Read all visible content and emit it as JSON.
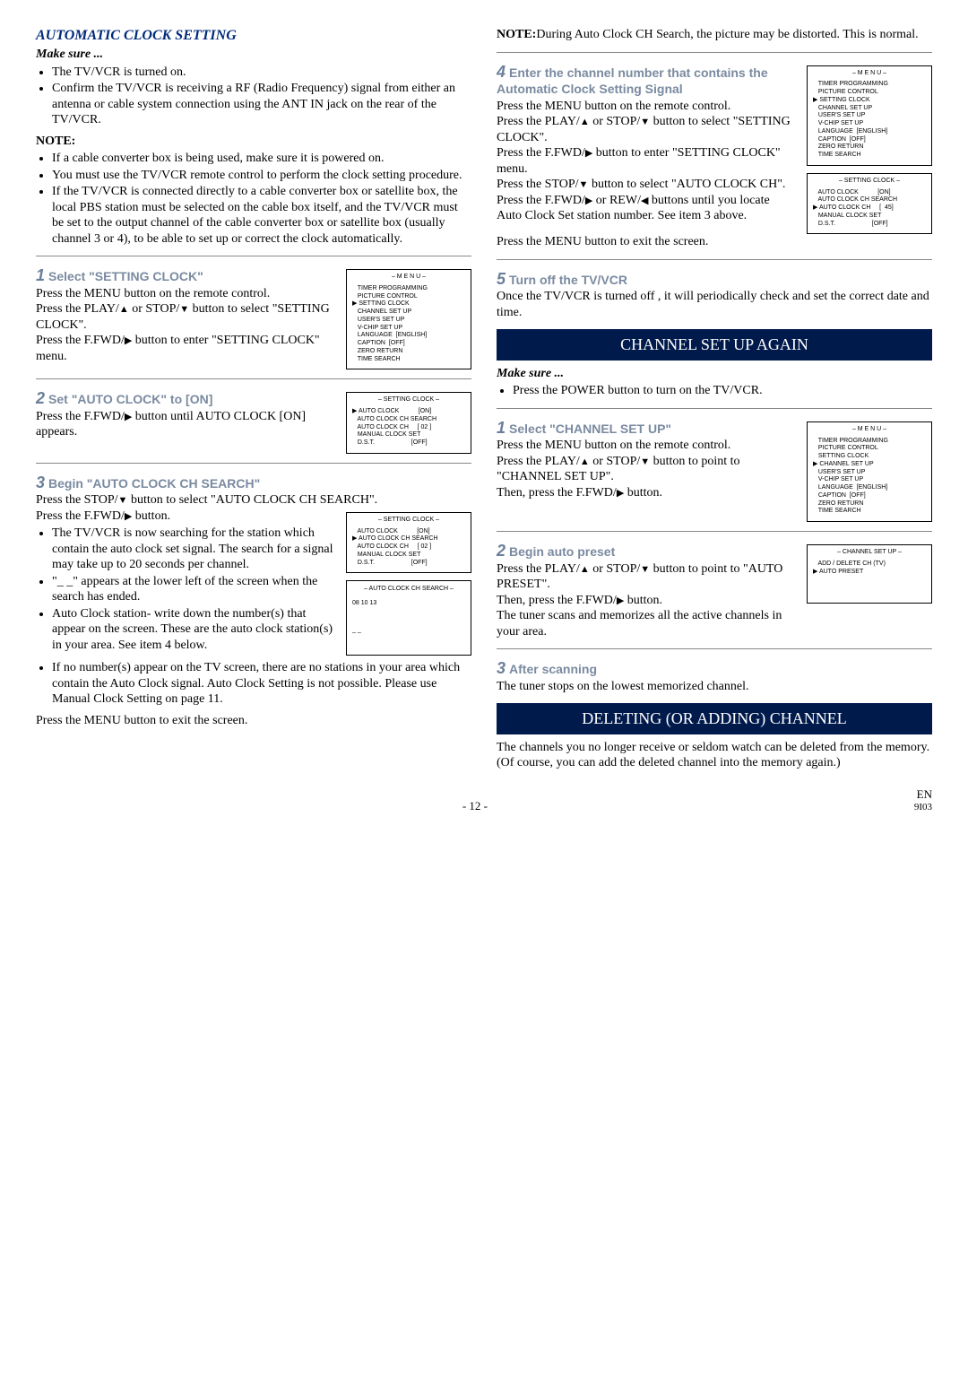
{
  "left": {
    "title": "AUTOMATIC CLOCK SETTING",
    "makeSure": "Make sure ...",
    "pre_bullets": [
      "The TV/VCR is turned on.",
      "Confirm the TV/VCR is receiving a RF (Radio Frequency) signal from either an antenna or cable system connection using the ANT IN jack on the rear of the TV/VCR."
    ],
    "noteLabel": "NOTE:",
    "note_bullets": [
      "If a cable converter box is being used, make sure it is powered on.",
      "You must use the TV/VCR remote control to perform the clock setting procedure.",
      "If the TV/VCR is connected directly to a cable converter box or satellite box, the local PBS station must be selected on the cable box itself, and the TV/VCR must be set to the output channel of the cable converter box or satellite box (usually channel 3 or 4), to be able to set up or correct the clock automatically."
    ],
    "s1": {
      "num": "1",
      "head": "Select \"SETTING CLOCK\"",
      "p1": "Press the MENU button on the remote control.",
      "p2a": "Press the PLAY/",
      "p2b": " or STOP/",
      "p2c": " button to select \"SETTING CLOCK\".",
      "p3a": "Press the F.FWD/",
      "p3b": " button to enter \"SETTING CLOCK\" menu.",
      "menu": {
        "title": "– M E N U –",
        "lines": [
          "TIMER PROGRAMMING",
          "PICTURE CONTROL",
          "SETTING CLOCK",
          "CHANNEL SET UP",
          "USER'S SET UP",
          "V-CHIP SET UP",
          "LANGUAGE  [ENGLISH]",
          "CAPTION  [OFF]",
          "ZERO RETURN",
          "TIME SEARCH"
        ],
        "selIndex": 2
      }
    },
    "s2": {
      "num": "2",
      "head": "Set \"AUTO CLOCK\" to [ON]",
      "p1a": "Press the F.FWD/",
      "p1b": " button until AUTO CLOCK [ON] appears.",
      "menu": {
        "title": "– SETTING CLOCK –",
        "lines": [
          "AUTO CLOCK           [ON]",
          "AUTO CLOCK CH SEARCH",
          "AUTO CLOCK CH     [ 02 ]",
          "MANUAL CLOCK SET",
          "D.S.T.                     [OFF]"
        ],
        "selIndex": 0
      }
    },
    "s3": {
      "num": "3",
      "head": "Begin \"AUTO CLOCK CH SEARCH\"",
      "p1a": "Press the STOP/",
      "p1b": " button to select \"AUTO CLOCK CH SEARCH\".",
      "p2a": "Press the F.FWD/",
      "p2b": " button.",
      "b1": "The TV/VCR is now searching for the station which contain the auto clock set signal. The search for a signal may take up to 20 seconds per channel.",
      "b2": "\"_ _\" appears at the lower left of the screen when the search has ended.",
      "b3": "Auto Clock station- write down the number(s) that appear on the screen. These are the auto clock station(s) in your area. See item 4 below.",
      "b4": "If no number(s) appear on the TV screen, there are no stations in your area which contain the Auto Clock signal. Auto Clock Setting is not possible. Please use Manual Clock Setting on page 11.",
      "p3": "Press the MENU button to exit the screen.",
      "menu": {
        "title": "– SETTING CLOCK –",
        "lines": [
          "AUTO CLOCK           [ON]",
          "AUTO CLOCK CH SEARCH",
          "AUTO CLOCK CH     [ 02 ]",
          "MANUAL CLOCK SET",
          "D.S.T.                     [OFF]"
        ],
        "selIndex": 1
      },
      "search": {
        "title": "– AUTO CLOCK CH SEARCH –",
        "row": "08     10     13",
        "tail": "_ _"
      }
    }
  },
  "right": {
    "topNoteLabel": "NOTE:",
    "topNote": "During Auto Clock CH Search, the picture may be distorted. This is normal.",
    "s4": {
      "num": "4",
      "head": "Enter the channel number that contains the Automatic Clock Setting Signal",
      "p1": "Press the MENU button on the remote control.",
      "p2a": "Press the PLAY/",
      "p2b": " or STOP/",
      "p2c": " button to select \"SETTING CLOCK\".",
      "p3a": "Press the F.FWD/",
      "p3b": " button to enter \"SETTING CLOCK\" menu.",
      "p4a": "Press the STOP/",
      "p4b": " button to select \"AUTO CLOCK CH\".",
      "p5a": "Press the F.FWD/",
      "p5b": " or REW/",
      "p5c": " buttons until you locate Auto Clock Set station number. See item 3 above.",
      "p6": "Press the MENU button to exit the screen.",
      "menu1": {
        "title": "– M E N U –",
        "lines": [
          "TIMER PROGRAMMING",
          "PICTURE CONTROL",
          "SETTING CLOCK",
          "CHANNEL SET UP",
          "USER'S SET UP",
          "V-CHIP SET UP",
          "LANGUAGE  [ENGLISH]",
          "CAPTION  [OFF]",
          "ZERO RETURN",
          "TIME SEARCH"
        ],
        "selIndex": 2
      },
      "menu2": {
        "title": "– SETTING CLOCK –",
        "lines": [
          "AUTO CLOCK           [ON]",
          "AUTO CLOCK CH SEARCH",
          "AUTO CLOCK CH     [  45]",
          "MANUAL CLOCK SET",
          "D.S.T.                     [OFF]"
        ],
        "selIndex": 2
      }
    },
    "s5": {
      "num": "5",
      "head": "Turn off the TV/VCR",
      "p1": "Once the TV/VCR is turned off , it will periodically check and set the correct date and time."
    },
    "bar1": "CHANNEL SET UP AGAIN",
    "makeSure2": "Make sure ...",
    "ms_b1": "Press the POWER button to turn on the TV/VCR.",
    "c1": {
      "num": "1",
      "head": "Select \"CHANNEL SET UP\"",
      "p1": "Press the MENU button on the remote control.",
      "p2a": "Press the PLAY/",
      "p2b": " or STOP/",
      "p2c": " button to point to \"CHANNEL SET UP\".",
      "p3a": "Then, press the F.FWD/",
      "p3b": " button.",
      "menu": {
        "title": "– M E N U –",
        "lines": [
          "TIMER PROGRAMMING",
          "PICTURE CONTROL",
          "SETTING CLOCK",
          "CHANNEL SET UP",
          "USER'S SET UP",
          "V-CHIP SET UP",
          "LANGUAGE  [ENGLISH]",
          "CAPTION  [OFF]",
          "ZERO RETURN",
          "TIME SEARCH"
        ],
        "selIndex": 3
      }
    },
    "c2": {
      "num": "2",
      "head": "Begin auto preset",
      "p1a": "Press the PLAY/",
      "p1b": " or STOP/",
      "p1c": " button to point to \"AUTO PRESET\".",
      "p2a": "Then, press the F.FWD/",
      "p2b": " button.",
      "p3": "The tuner scans and memorizes all the active channels in your area.",
      "menu": {
        "title": "– CHANNEL SET UP –",
        "lines": [
          "ADD / DELETE CH (TV)",
          "AUTO PRESET"
        ],
        "selIndex": 1
      }
    },
    "c3": {
      "num": "3",
      "head": "After scanning",
      "p1": "The tuner stops on the lowest memorized channel."
    },
    "bar2": "DELETING (OR ADDING) CHANNEL",
    "del_p": "The channels you no longer receive or seldom watch can be deleted from the memory. (Of course, you can add the deleted channel into the memory again.)"
  },
  "footer": {
    "center": "- 12 -",
    "right1": "EN",
    "right2": "9I03"
  }
}
